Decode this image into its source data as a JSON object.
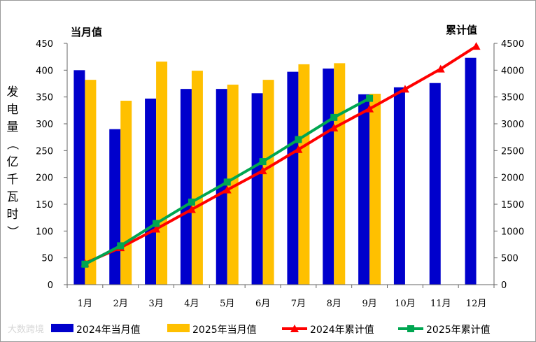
{
  "chart_data": {
    "type": "bar+line",
    "categories": [
      "1月",
      "2月",
      "3月",
      "4月",
      "5月",
      "6月",
      "7月",
      "8月",
      "9月",
      "10月",
      "11月",
      "12月"
    ],
    "left_axis": {
      "title": "当月值",
      "label": "发电量（亿千瓦时）",
      "ylim": [
        0,
        450
      ],
      "ticks": [
        0,
        50,
        100,
        150,
        200,
        250,
        300,
        350,
        400,
        450
      ]
    },
    "right_axis": {
      "title": "累计值",
      "ylim": [
        0,
        4500
      ],
      "ticks": [
        0,
        500,
        1000,
        1500,
        2000,
        2500,
        3000,
        3500,
        4000,
        4500
      ]
    },
    "series": [
      {
        "name": "2024年当月值",
        "type": "bar",
        "axis": "left",
        "color": "#0000CC",
        "values": [
          400,
          290,
          347,
          365,
          365,
          357,
          397,
          403,
          355,
          368,
          376,
          423
        ]
      },
      {
        "name": "2025年当月值",
        "type": "bar",
        "axis": "left",
        "color": "#FFC000",
        "values": [
          382,
          343,
          416,
          399,
          373,
          382,
          411,
          413,
          356,
          null,
          null,
          null
        ]
      },
      {
        "name": "2024年累计值",
        "type": "line",
        "axis": "right",
        "color": "#FF0000",
        "marker": "triangle",
        "values": [
          400,
          690,
          1037,
          1402,
          1767,
          2124,
          2521,
          2924,
          3279,
          3647,
          4023,
          4446
        ]
      },
      {
        "name": "2025年累计值",
        "type": "line",
        "axis": "right",
        "color": "#00A651",
        "marker": "star",
        "values": [
          382,
          725,
          1141,
          1540,
          1913,
          2295,
          2706,
          3119,
          3475,
          null,
          null,
          null
        ]
      }
    ],
    "legend": "bottom",
    "grid": false
  },
  "watermark": "大数跨境"
}
